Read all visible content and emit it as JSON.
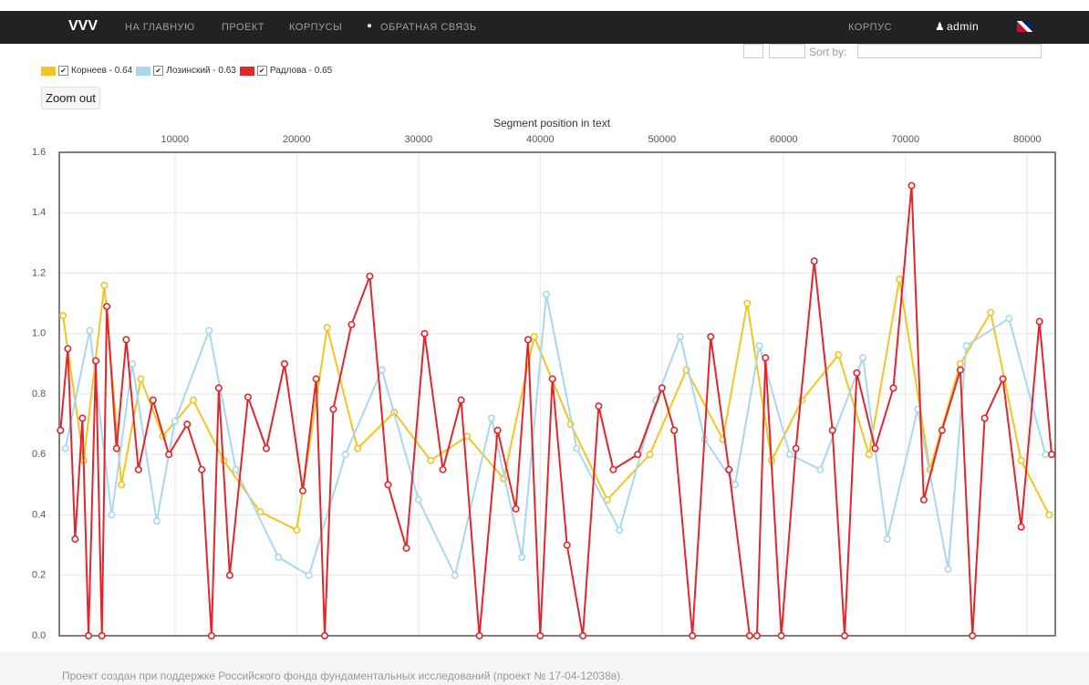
{
  "navbar": {
    "brand": "VVV",
    "items": [
      "НА ГЛАВНУЮ",
      "ПРОЕКТ",
      "КОРПУСЫ",
      "ОБРАТНАЯ СВЯЗЬ"
    ],
    "right": [
      "КОРПУС",
      "admin"
    ]
  },
  "sort_label": "Sort by:",
  "zoom_button": "Zoom out",
  "footer": "Проект создан при поддержке Российского фонда фундаментальных исследований (проект № 17-04-12038в).",
  "chart_data": {
    "type": "line",
    "x_label": "Segment position in text",
    "xlim": [
      500,
      82300
    ],
    "xticks": [
      10000,
      20000,
      30000,
      40000,
      50000,
      60000,
      70000,
      80000
    ],
    "ylim": [
      0,
      1.6
    ],
    "yticks": [
      {
        "value": 0,
        "label": "0.0"
      },
      0.2,
      0.4,
      0.6,
      0.8,
      {
        "value": 1,
        "label": "1.0"
      },
      1.2,
      1.4,
      1.6
    ],
    "grid": true,
    "series": [
      {
        "name": "Корнеев - 0.64",
        "color": "#f2c521",
        "x": [
          800,
          2500,
          4200,
          5600,
          7200,
          9000,
          11500,
          14000,
          17000,
          20000,
          22500,
          25000,
          28000,
          31000,
          34000,
          37000,
          39500,
          42500,
          45500,
          49000,
          52000,
          55000,
          57000,
          59000,
          61500,
          64500,
          67000,
          69500,
          72000,
          74500,
          77000,
          79500,
          81800
        ],
        "values": [
          1.06,
          0.58,
          1.16,
          0.5,
          0.85,
          0.66,
          0.78,
          0.58,
          0.41,
          0.35,
          1.02,
          0.62,
          0.74,
          0.58,
          0.66,
          0.52,
          0.99,
          0.7,
          0.45,
          0.6,
          0.88,
          0.65,
          1.1,
          0.58,
          0.78,
          0.93,
          0.6,
          1.18,
          0.55,
          0.9,
          1.07,
          0.58,
          0.4
        ]
      },
      {
        "name": "Лозинский - 0.63",
        "color": "#a8d8f0",
        "x": [
          1000,
          3000,
          4800,
          6500,
          8500,
          10000,
          12800,
          15000,
          18500,
          21000,
          24000,
          27000,
          30000,
          33000,
          36000,
          38500,
          40500,
          43000,
          46500,
          49500,
          51500,
          53500,
          56000,
          58000,
          60500,
          63000,
          66500,
          68500,
          71000,
          73500,
          75000,
          78500,
          81500
        ],
        "values": [
          0.62,
          1.01,
          0.4,
          0.9,
          0.38,
          0.71,
          1.01,
          0.55,
          0.26,
          0.2,
          0.6,
          0.88,
          0.45,
          0.2,
          0.72,
          0.26,
          1.13,
          0.62,
          0.35,
          0.78,
          0.99,
          0.65,
          0.5,
          0.96,
          0.6,
          0.55,
          0.92,
          0.32,
          0.75,
          0.22,
          0.96,
          1.05,
          0.6
        ]
      },
      {
        "name": "Радлова - 0.65",
        "color": "#e3262b",
        "x": [
          600,
          1200,
          1800,
          2400,
          2900,
          3500,
          4000,
          4400,
          5200,
          6000,
          7000,
          8200,
          9500,
          11000,
          12200,
          13000,
          13600,
          14500,
          16000,
          17500,
          19000,
          20500,
          21600,
          22300,
          23000,
          24500,
          26000,
          27500,
          29000,
          30500,
          32000,
          33500,
          35000,
          36500,
          38000,
          39000,
          40000,
          41000,
          42200,
          43500,
          44800,
          46000,
          48000,
          50000,
          51000,
          52500,
          54000,
          55500,
          57200,
          57800,
          58500,
          59800,
          61000,
          62500,
          64000,
          65000,
          66000,
          67500,
          69000,
          70500,
          71500,
          73000,
          74500,
          75500,
          76500,
          78000,
          79500,
          81000,
          82000
        ],
        "values": [
          0.68,
          0.95,
          0.32,
          0.72,
          0,
          0.91,
          0,
          1.09,
          0.62,
          0.98,
          0.55,
          0.78,
          0.6,
          0.7,
          0.55,
          0,
          0.82,
          0.2,
          0.79,
          0.62,
          0.9,
          0.48,
          0.85,
          0,
          0.75,
          1.03,
          1.19,
          0.5,
          0.29,
          1.0,
          0.55,
          0.78,
          0,
          0.68,
          0.42,
          0.98,
          0,
          0.85,
          0.3,
          0,
          0.76,
          0.55,
          0.6,
          0.82,
          0.68,
          0,
          0.99,
          0.55,
          0,
          0,
          0.92,
          0,
          0.62,
          1.24,
          0.68,
          0,
          0.87,
          0.62,
          0.82,
          1.49,
          0.45,
          0.68,
          0.88,
          0,
          0.72,
          0.85,
          0.36,
          1.04,
          0.6
        ]
      }
    ]
  }
}
